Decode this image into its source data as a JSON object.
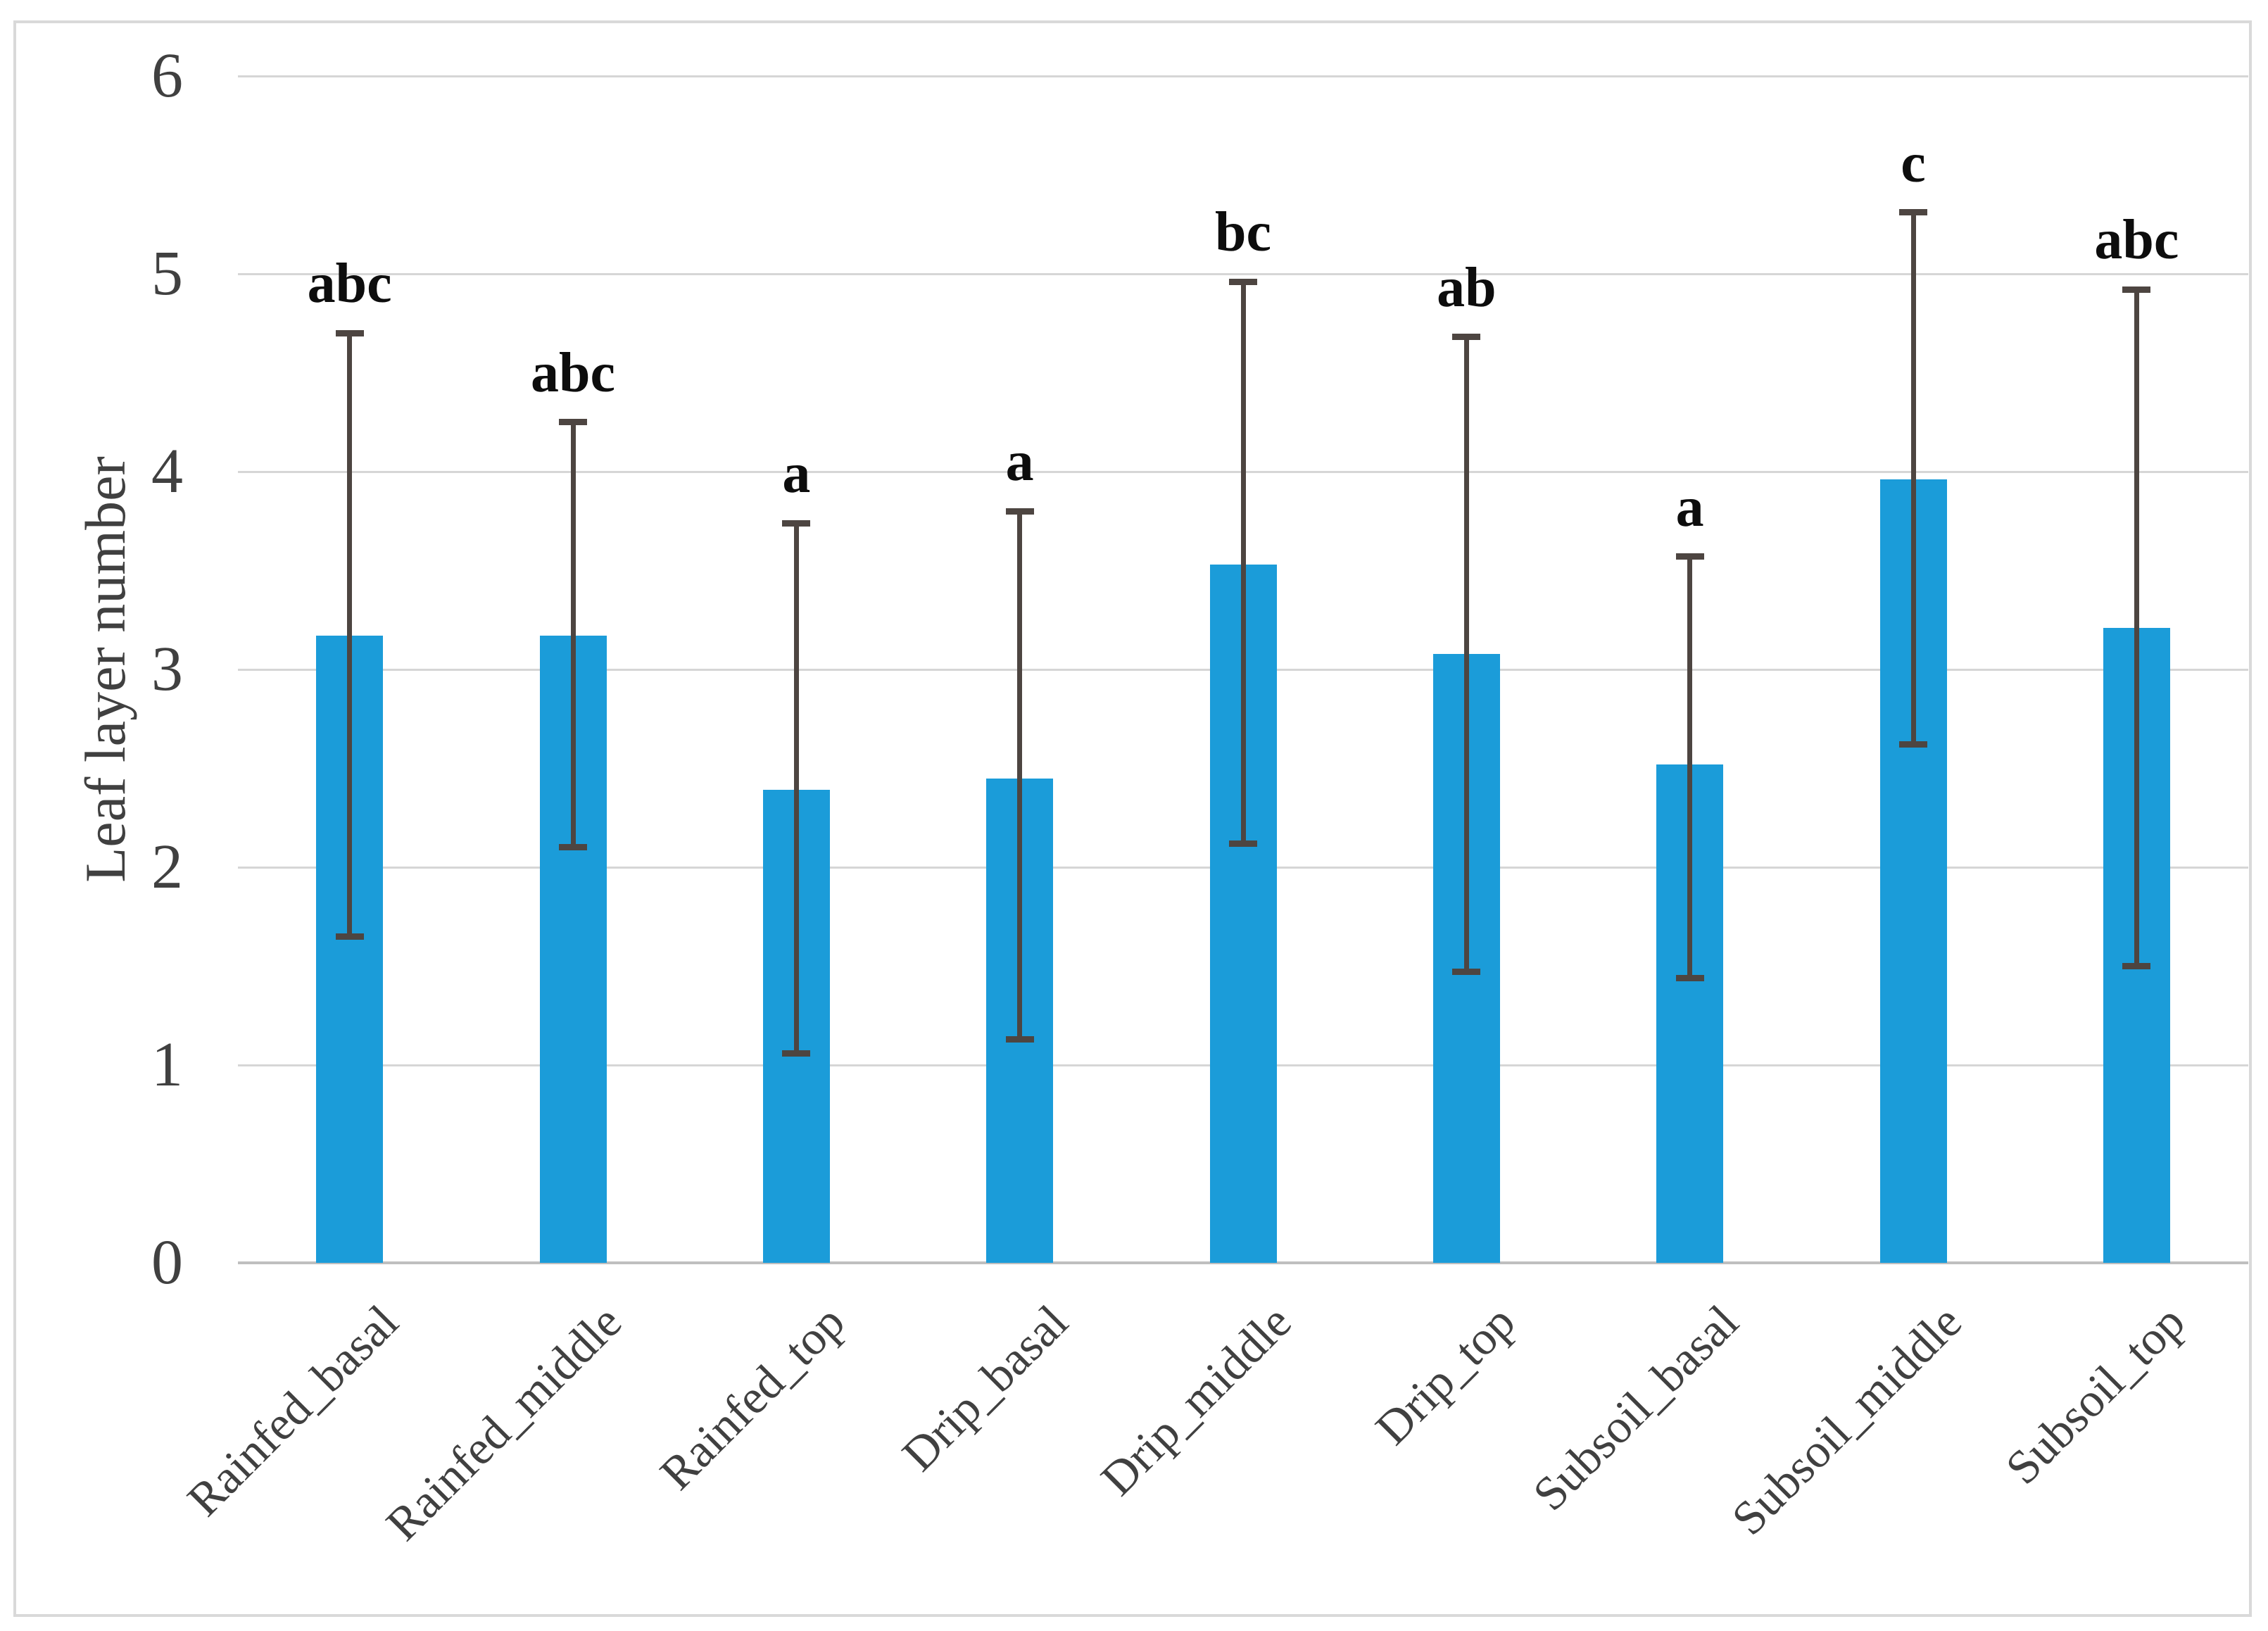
{
  "figure": {
    "background": "#ffffff",
    "border_color": "#d9d9d9"
  },
  "chart_data": {
    "type": "bar",
    "title": "",
    "xlabel": "",
    "ylabel": "Leaf layer number",
    "ylim": [
      0,
      6
    ],
    "yticks": [
      "0",
      "1",
      "2",
      "3",
      "4",
      "5",
      "6"
    ],
    "grid": true,
    "legend_position": "none",
    "bar_color": "#1b9cd9",
    "error_bar_color": "#4d4541",
    "axis_text_color": "#404040",
    "categories": [
      "Rainfed_basal",
      "Rainfed_middle",
      "Rainfed_top",
      "Drip_basal",
      "Drip_middle",
      "Drip_top",
      "Subsoil_basal",
      "Subsoil_middle",
      "Subsoil_top"
    ],
    "series": [
      {
        "name": "Leaf layer number",
        "values": [
          3.17,
          3.17,
          2.39,
          2.45,
          3.53,
          3.08,
          2.52,
          3.96,
          3.21
        ],
        "whisker_top": [
          4.7,
          4.25,
          3.74,
          3.8,
          4.96,
          4.68,
          3.57,
          5.31,
          4.92
        ],
        "whisker_bottom": [
          1.65,
          2.1,
          1.06,
          1.13,
          2.12,
          1.47,
          1.44,
          2.62,
          1.5
        ],
        "sig_letters": [
          "abc",
          "abc",
          "a",
          "a",
          "bc",
          "ab",
          "a",
          "c",
          "abc"
        ]
      }
    ]
  }
}
